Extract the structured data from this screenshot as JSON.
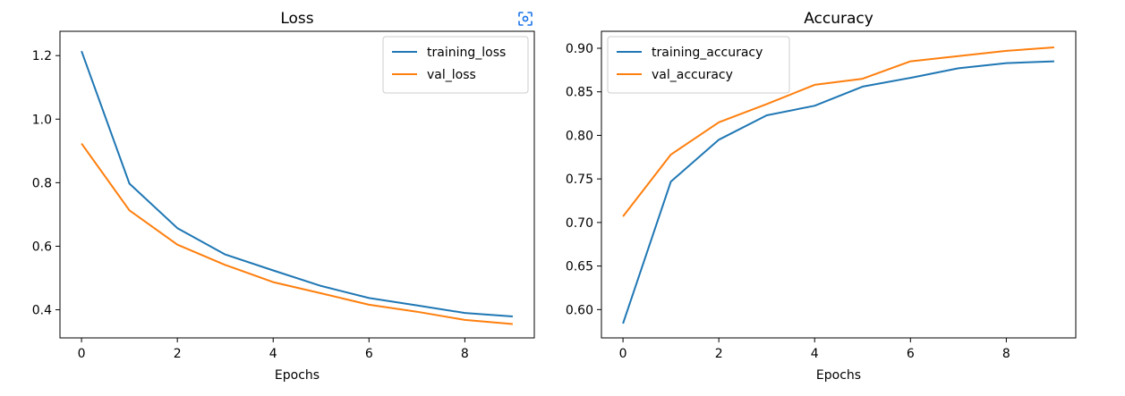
{
  "chart_data": [
    {
      "type": "line",
      "title": "Loss",
      "xlabel": "Epochs",
      "ylabel": "",
      "x": [
        0,
        1,
        2,
        3,
        4,
        5,
        6,
        7,
        8,
        9
      ],
      "xlim": [
        -0.45,
        9.45
      ],
      "ylim": [
        0.3115,
        1.2765
      ],
      "xticks": [
        0,
        2,
        4,
        6,
        8
      ],
      "xtick_labels": [
        "0",
        "2",
        "4",
        "6",
        "8"
      ],
      "yticks": [
        0.4,
        0.6,
        0.8,
        1.0,
        1.2
      ],
      "ytick_labels": [
        "0.4",
        "0.6",
        "0.8",
        "1.0",
        "1.2"
      ],
      "grid": false,
      "legend_position": "top-right",
      "series": [
        {
          "name": "training_loss",
          "color": "#1f77b4",
          "values": [
            1.214,
            0.797,
            0.657,
            0.574,
            0.524,
            0.475,
            0.437,
            0.414,
            0.39,
            0.379
          ]
        },
        {
          "name": "val_loss",
          "color": "#ff7f0e",
          "values": [
            0.923,
            0.713,
            0.605,
            0.541,
            0.487,
            0.452,
            0.416,
            0.394,
            0.368,
            0.355
          ]
        }
      ]
    },
    {
      "type": "line",
      "title": "Accuracy",
      "xlabel": "Epochs",
      "ylabel": "",
      "x": [
        0,
        1,
        2,
        3,
        4,
        5,
        6,
        7,
        8,
        9
      ],
      "xlim": [
        -0.45,
        9.45
      ],
      "ylim": [
        0.5675,
        0.9195
      ],
      "xticks": [
        0,
        2,
        4,
        6,
        8
      ],
      "xtick_labels": [
        "0",
        "2",
        "4",
        "6",
        "8"
      ],
      "yticks": [
        0.6,
        0.65,
        0.7,
        0.75,
        0.8,
        0.85,
        0.9
      ],
      "ytick_labels": [
        "0.60",
        "0.65",
        "0.70",
        "0.75",
        "0.80",
        "0.85",
        "0.90"
      ],
      "grid": false,
      "legend_position": "top-left",
      "series": [
        {
          "name": "training_accuracy",
          "color": "#1f77b4",
          "values": [
            0.584,
            0.747,
            0.795,
            0.823,
            0.834,
            0.856,
            0.866,
            0.877,
            0.883,
            0.885
          ]
        },
        {
          "name": "val_accuracy",
          "color": "#ff7f0e",
          "values": [
            0.707,
            0.778,
            0.815,
            0.836,
            0.858,
            0.865,
            0.885,
            0.891,
            0.897,
            0.901
          ]
        }
      ]
    }
  ],
  "toolbar": {
    "icon": "focus-scan-icon",
    "color": "#1a73e8"
  }
}
